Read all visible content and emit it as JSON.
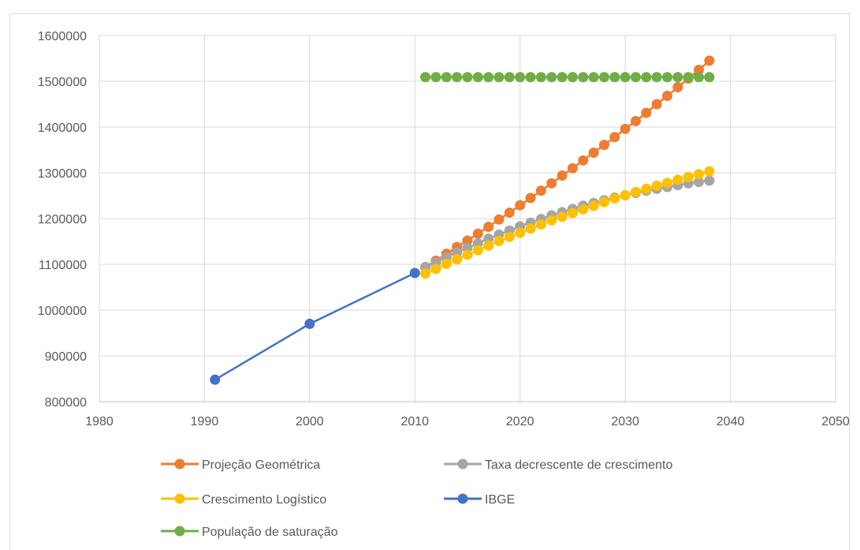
{
  "chart_data": {
    "type": "scatter",
    "title": "",
    "xlabel": "",
    "ylabel": "",
    "xlim": [
      1980,
      2050
    ],
    "ylim": [
      800000,
      1600000
    ],
    "x_ticks": [
      1980,
      1990,
      2000,
      2010,
      2020,
      2030,
      2040,
      2050
    ],
    "y_ticks": [
      800000,
      900000,
      1000000,
      1100000,
      1200000,
      1300000,
      1400000,
      1500000,
      1600000
    ],
    "grid": true,
    "legend_position": "bottom",
    "series": [
      {
        "name": "Projeção Geométrica",
        "color": "#ED7D31",
        "x": [
          2011,
          2012,
          2013,
          2014,
          2015,
          2016,
          2017,
          2018,
          2019,
          2020,
          2021,
          2022,
          2023,
          2024,
          2025,
          2026,
          2027,
          2028,
          2029,
          2030,
          2031,
          2032,
          2033,
          2034,
          2035,
          2036,
          2037,
          2038
        ],
        "y": [
          1094000,
          1108000,
          1123000,
          1138000,
          1152000,
          1167000,
          1182000,
          1198000,
          1213000,
          1229000,
          1245000,
          1261000,
          1277000,
          1294000,
          1310000,
          1327000,
          1344000,
          1361000,
          1378000,
          1396000,
          1413000,
          1431000,
          1450000,
          1468000,
          1487000,
          1506000,
          1525000,
          1545000
        ]
      },
      {
        "name": "Taxa decrescente de crescimento",
        "color": "#A5A5A5",
        "x": [
          2011,
          2012,
          2013,
          2014,
          2015,
          2016,
          2017,
          2018,
          2019,
          2020,
          2021,
          2022,
          2023,
          2024,
          2025,
          2026,
          2027,
          2028,
          2029,
          2030,
          2031,
          2032,
          2033,
          2034,
          2035,
          2036,
          2037,
          2038
        ],
        "y": [
          1093000,
          1104000,
          1115000,
          1126000,
          1136000,
          1146000,
          1156000,
          1165000,
          1174000,
          1183000,
          1191000,
          1199000,
          1207000,
          1214000,
          1221000,
          1228000,
          1234000,
          1240000,
          1246000,
          1251000,
          1256000,
          1261000,
          1265000,
          1269000,
          1273000,
          1277000,
          1280000,
          1283000
        ]
      },
      {
        "name": "Crescimento Logístico",
        "color": "#FFC000",
        "x": [
          2011,
          2012,
          2013,
          2014,
          2015,
          2016,
          2017,
          2018,
          2019,
          2020,
          2021,
          2022,
          2023,
          2024,
          2025,
          2026,
          2027,
          2028,
          2029,
          2030,
          2031,
          2032,
          2033,
          2034,
          2035,
          2036,
          2037,
          2038
        ],
        "y": [
          1080000,
          1090000,
          1101000,
          1111000,
          1121000,
          1131000,
          1141000,
          1151000,
          1160000,
          1169000,
          1178000,
          1187000,
          1196000,
          1204000,
          1212000,
          1220000,
          1228000,
          1236000,
          1244000,
          1251000,
          1258000,
          1265000,
          1272000,
          1278000,
          1285000,
          1291000,
          1297000,
          1303000
        ]
      },
      {
        "name": "IBGE",
        "color": "#4472C4",
        "x": [
          1991,
          2000,
          2010
        ],
        "y": [
          848000,
          970000,
          1081000
        ]
      },
      {
        "name": "População de saturação",
        "color": "#70AD47",
        "x": [
          2011,
          2012,
          2013,
          2014,
          2015,
          2016,
          2017,
          2018,
          2019,
          2020,
          2021,
          2022,
          2023,
          2024,
          2025,
          2026,
          2027,
          2028,
          2029,
          2030,
          2031,
          2032,
          2033,
          2034,
          2035,
          2036,
          2037,
          2038
        ],
        "y": [
          1509000,
          1509000,
          1509000,
          1509000,
          1509000,
          1509000,
          1509000,
          1509000,
          1509000,
          1509000,
          1509000,
          1509000,
          1509000,
          1509000,
          1509000,
          1509000,
          1509000,
          1509000,
          1509000,
          1509000,
          1509000,
          1509000,
          1509000,
          1509000,
          1509000,
          1509000,
          1509000,
          1509000
        ]
      }
    ],
    "legend_order": [
      "Projeção Geométrica",
      "Taxa decrescente de crescimento",
      "Crescimento Logístico",
      "IBGE",
      "População de saturação"
    ]
  }
}
